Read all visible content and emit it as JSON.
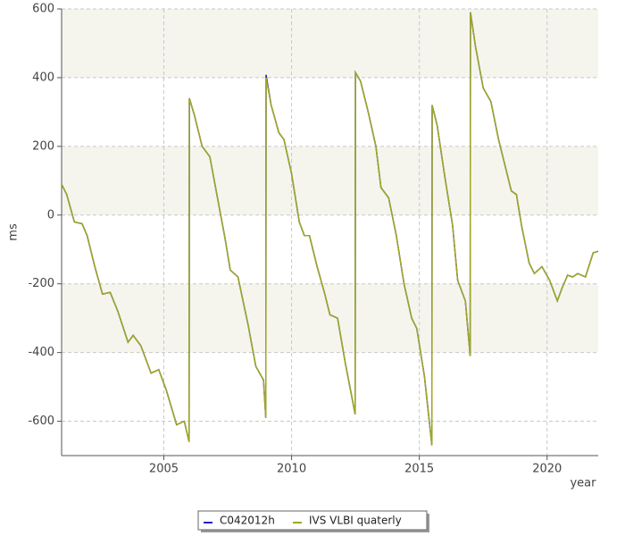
{
  "chart_data": {
    "type": "line",
    "y_label": "ms",
    "x_label": "year",
    "xlim": [
      2001,
      2022
    ],
    "xticks": [
      2005,
      2010,
      2015,
      2020
    ],
    "ylim": [
      -700,
      600
    ],
    "yticks": [
      -600,
      -400,
      -200,
      0,
      200,
      400,
      600
    ],
    "grid": true,
    "legend": "bottom",
    "x": [
      2001.0,
      2001.2,
      2001.5,
      2001.8,
      2002.0,
      2002.3,
      2002.6,
      2002.9,
      2003.2,
      2003.6,
      2003.8,
      2004.1,
      2004.5,
      2004.8,
      2005.1,
      2005.5,
      2005.8,
      2005.99,
      2006.0,
      2006.2,
      2006.5,
      2006.8,
      2007.1,
      2007.4,
      2007.6,
      2007.9,
      2008.3,
      2008.6,
      2008.9,
      2008.99,
      2009.0,
      2009.2,
      2009.5,
      2009.7,
      2010.0,
      2010.3,
      2010.5,
      2010.7,
      2011.0,
      2011.3,
      2011.5,
      2011.8,
      2012.1,
      2012.49,
      2012.5,
      2012.7,
      2013.0,
      2013.3,
      2013.5,
      2013.8,
      2014.1,
      2014.4,
      2014.7,
      2014.9,
      2015.2,
      2015.49,
      2015.5,
      2015.7,
      2016.0,
      2016.3,
      2016.5,
      2016.8,
      2016.99,
      2017.0,
      2017.2,
      2017.5,
      2017.8,
      2018.1,
      2018.4,
      2018.6,
      2018.8,
      2019.0,
      2019.3,
      2019.5,
      2019.8,
      2020.1,
      2020.4,
      2020.6,
      2020.8,
      2021.0,
      2021.2,
      2021.5,
      2021.8,
      2022.0
    ],
    "series": [
      {
        "name": "C042012h",
        "color": "#2020c0",
        "values": [
          90,
          60,
          -20,
          -25,
          -60,
          -150,
          -230,
          -225,
          -280,
          -370,
          -350,
          -380,
          -460,
          -450,
          -510,
          -610,
          -600,
          -660,
          340,
          290,
          200,
          170,
          50,
          -70,
          -160,
          -180,
          -320,
          -440,
          -480,
          -590,
          408,
          320,
          240,
          220,
          120,
          -20,
          -60,
          -60,
          -150,
          -230,
          -290,
          -300,
          -430,
          -580,
          415,
          390,
          300,
          200,
          80,
          50,
          -60,
          -200,
          -300,
          -330,
          -470,
          -670,
          320,
          260,
          110,
          -30,
          -190,
          -250,
          -410,
          590,
          490,
          370,
          330,
          220,
          130,
          70,
          60,
          -30,
          -140,
          -170,
          -150,
          -190,
          -250,
          -210,
          -175,
          -180,
          -170,
          -180,
          -110,
          -105
        ]
      },
      {
        "name": "IVS VLBI quaterly",
        "color": "#a0a820",
        "values": [
          90,
          60,
          -20,
          -25,
          -60,
          -150,
          -230,
          -225,
          -280,
          -370,
          -350,
          -380,
          -460,
          -450,
          -510,
          -610,
          -600,
          -660,
          340,
          290,
          200,
          170,
          50,
          -70,
          -160,
          -180,
          -320,
          -440,
          -480,
          -590,
          400,
          320,
          240,
          220,
          120,
          -20,
          -60,
          -60,
          -150,
          -230,
          -290,
          -300,
          -430,
          -580,
          415,
          390,
          300,
          200,
          80,
          50,
          -60,
          -200,
          -300,
          -330,
          -470,
          -670,
          320,
          260,
          110,
          -30,
          -190,
          -250,
          -410,
          590,
          490,
          370,
          330,
          220,
          130,
          70,
          60,
          -30,
          -140,
          -170,
          -150,
          -190,
          -250,
          -210,
          -175,
          -180,
          -170,
          -180,
          -110,
          -105
        ]
      }
    ]
  }
}
